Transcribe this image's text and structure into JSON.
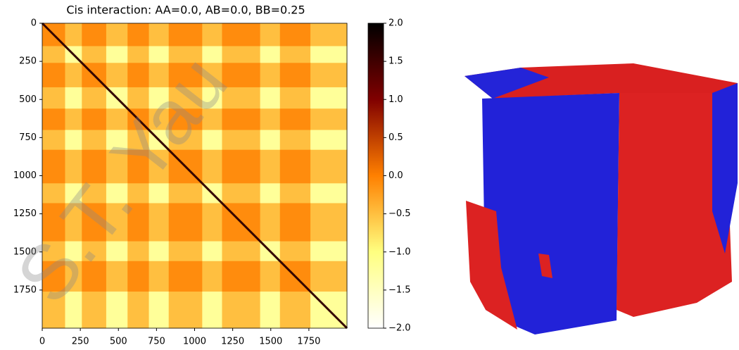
{
  "chart_data": {
    "type": "heatmap",
    "title": "Cis interaction: AA=0.0, AB=0.0, BB=0.25",
    "x": [
      0,
      150,
      260,
      420,
      560,
      700,
      830,
      1050,
      1180,
      1430,
      1560,
      1760,
      2000
    ],
    "z": [
      [
        -0.1,
        -0.5,
        -0.1,
        -0.5,
        -0.1,
        -0.5,
        -0.1,
        -0.5,
        -0.1,
        -0.5,
        -0.1,
        -0.5
      ],
      [
        -0.5,
        -1.2,
        -0.5,
        -1.2,
        -0.5,
        -1.2,
        -0.5,
        -1.2,
        -0.5,
        -1.2,
        -0.5,
        -1.2
      ],
      [
        -0.1,
        -0.5,
        -0.1,
        -0.5,
        -0.1,
        -0.5,
        -0.1,
        -0.5,
        -0.1,
        -0.5,
        -0.1,
        -0.5
      ],
      [
        -0.5,
        -1.2,
        -0.5,
        -1.2,
        -0.5,
        -1.2,
        -0.5,
        -1.2,
        -0.5,
        -1.2,
        -0.5,
        -1.2
      ],
      [
        -0.1,
        -0.5,
        -0.1,
        -0.5,
        -0.1,
        -0.5,
        -0.1,
        -0.5,
        -0.1,
        -0.5,
        -0.1,
        -0.5
      ],
      [
        -0.5,
        -1.2,
        -0.5,
        -1.2,
        -0.5,
        -1.2,
        -0.5,
        -1.2,
        -0.5,
        -1.2,
        -0.5,
        -1.2
      ],
      [
        -0.1,
        -0.5,
        -0.1,
        -0.5,
        -0.1,
        -0.5,
        -0.1,
        -0.5,
        -0.1,
        -0.5,
        -0.1,
        -0.5
      ],
      [
        -0.5,
        -1.2,
        -0.5,
        -1.2,
        -0.5,
        -1.2,
        -0.5,
        -1.2,
        -0.5,
        -1.2,
        -0.5,
        -1.2
      ],
      [
        -0.1,
        -0.5,
        -0.1,
        -0.5,
        -0.1,
        -0.5,
        -0.1,
        -0.5,
        -0.1,
        -0.5,
        -0.1,
        -0.5
      ],
      [
        -0.5,
        -1.2,
        -0.5,
        -1.2,
        -0.5,
        -1.2,
        -0.5,
        -1.2,
        -0.5,
        -1.2,
        -0.5,
        -1.2
      ],
      [
        -0.1,
        -0.5,
        -0.1,
        -0.5,
        -0.1,
        -0.5,
        -0.1,
        -0.5,
        -0.1,
        -0.5,
        -0.1,
        -0.5
      ],
      [
        -0.5,
        -1.2,
        -0.5,
        -1.2,
        -0.5,
        -1.2,
        -0.5,
        -1.2,
        -0.5,
        -1.2,
        -0.5,
        -1.2
      ]
    ],
    "diagonal": 1.6,
    "xlim": [
      0,
      2000
    ],
    "ylim": [
      2000,
      0
    ],
    "xticks": [
      0,
      250,
      500,
      750,
      1000,
      1250,
      1500,
      1750
    ],
    "yticks": [
      0,
      250,
      500,
      750,
      1000,
      1250,
      1500,
      1750
    ],
    "colormap": "afmhot_r",
    "clim": [
      -2,
      2
    ],
    "cticks": [
      {
        "value": -2,
        "label": "−2.0"
      },
      {
        "value": -1.5,
        "label": "−1.5"
      },
      {
        "value": -1,
        "label": "−1.0"
      },
      {
        "value": -0.5,
        "label": "−0.5"
      },
      {
        "value": 0,
        "label": "0.0"
      },
      {
        "value": 0.5,
        "label": "0.5"
      },
      {
        "value": 1,
        "label": "1.0"
      },
      {
        "value": 1.5,
        "label": "1.5"
      },
      {
        "value": 2,
        "label": "2.0"
      }
    ],
    "watermark": "S.T. Yau"
  }
}
